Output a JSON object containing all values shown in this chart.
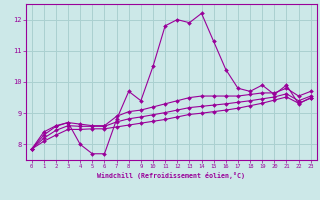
{
  "xlabel": "Windchill (Refroidissement éolien,°C)",
  "background_color": "#cce8e8",
  "grid_color": "#aad0d0",
  "line_color": "#990099",
  "x_data": [
    0,
    1,
    2,
    3,
    4,
    5,
    6,
    7,
    8,
    9,
    10,
    11,
    12,
    13,
    14,
    15,
    16,
    17,
    18,
    19,
    20,
    21,
    22,
    23
  ],
  "y_line1": [
    7.85,
    8.4,
    8.6,
    8.7,
    8.0,
    7.7,
    7.7,
    8.8,
    9.7,
    9.4,
    10.5,
    11.8,
    12.0,
    11.9,
    12.2,
    11.3,
    10.4,
    9.8,
    9.7,
    9.9,
    9.6,
    9.9,
    9.3,
    9.5
  ],
  "y_line2": [
    7.85,
    8.3,
    8.58,
    8.7,
    8.65,
    8.6,
    8.6,
    8.9,
    9.05,
    9.1,
    9.2,
    9.3,
    9.4,
    9.5,
    9.55,
    9.55,
    9.55,
    9.55,
    9.6,
    9.65,
    9.65,
    9.8,
    9.55,
    9.7
  ],
  "y_line3": [
    7.85,
    8.2,
    8.45,
    8.6,
    8.58,
    8.58,
    8.58,
    8.72,
    8.82,
    8.88,
    8.95,
    9.02,
    9.1,
    9.18,
    9.22,
    9.26,
    9.3,
    9.35,
    9.4,
    9.46,
    9.52,
    9.62,
    9.4,
    9.55
  ],
  "y_line4": [
    7.85,
    8.1,
    8.3,
    8.48,
    8.48,
    8.5,
    8.5,
    8.56,
    8.62,
    8.68,
    8.74,
    8.8,
    8.88,
    8.96,
    9.0,
    9.05,
    9.1,
    9.16,
    9.24,
    9.32,
    9.42,
    9.52,
    9.32,
    9.48
  ],
  "ylim": [
    7.5,
    12.5
  ],
  "xlim": [
    -0.5,
    23.5
  ],
  "yticks": [
    8,
    9,
    10,
    11,
    12
  ],
  "xticks": [
    0,
    1,
    2,
    3,
    4,
    5,
    6,
    7,
    8,
    9,
    10,
    11,
    12,
    13,
    14,
    15,
    16,
    17,
    18,
    19,
    20,
    21,
    22,
    23
  ]
}
